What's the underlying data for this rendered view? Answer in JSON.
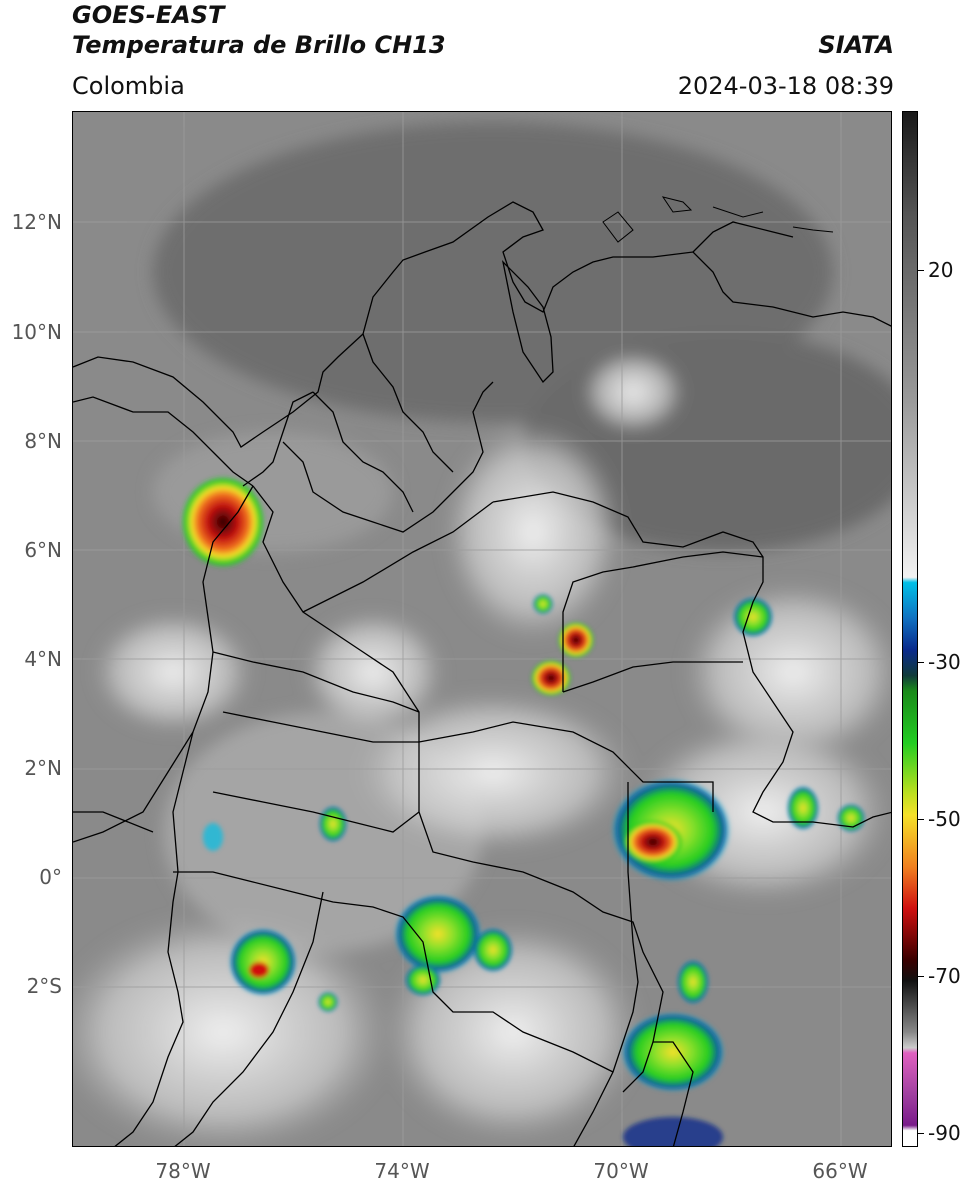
{
  "header": {
    "title_line1": "GOES-EAST",
    "title_line2": "Temperatura de Brillo CH13",
    "brand": "SIATA",
    "region": "Colombia",
    "datetime": "2024-03-18 08:39"
  },
  "map": {
    "lat_labels": [
      "12°N",
      "10°N",
      "8°N",
      "6°N",
      "4°N",
      "2°N",
      "0°",
      "2°S"
    ],
    "lon_labels": [
      "78°W",
      "74°W",
      "70°W",
      "66°W"
    ]
  },
  "colorbar": {
    "labels": [
      "20",
      "-30",
      "-50",
      "-70",
      "-90"
    ],
    "colors": {
      "grey_dark": "#1a1a1a",
      "grey_light": "#f2f2f2",
      "cyan": "#00bfe6",
      "blue": "#0a2a8c",
      "green": "#22cc22",
      "yellow": "#f5e12a",
      "red": "#d01010",
      "dark_red": "#3a0000",
      "pink": "#e060c0",
      "purple": "#7a1a8a"
    }
  }
}
